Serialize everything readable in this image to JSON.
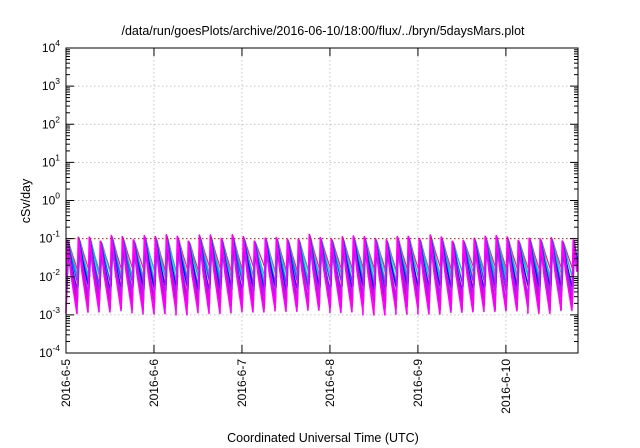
{
  "chart_data": {
    "type": "line",
    "title": "/data/run/goesPlots/archive/2016-06-10/18:00/flux/../bryn/5daysMars.plot",
    "xlabel": "Coordinated Universal Time (UTC)",
    "ylabel": "cSv/day",
    "yscale": "log",
    "ylim": [
      0.0001,
      10000
    ],
    "xlim": [
      "2016-06-05T00:00",
      "2016-06-10T19:40"
    ],
    "x_ticks": [
      {
        "label": "2016-6-5",
        "date": "2016-06-05"
      },
      {
        "label": "2016-6-6",
        "date": "2016-06-06"
      },
      {
        "label": "2016-6-7",
        "date": "2016-06-07"
      },
      {
        "label": "2016-6-8",
        "date": "2016-06-08"
      },
      {
        "label": "2016-6-9",
        "date": "2016-06-09"
      },
      {
        "label": "2016-6-10",
        "date": "2016-06-10"
      }
    ],
    "y_ticks": [
      {
        "base": "10",
        "exp": "-4",
        "value": 0.0001
      },
      {
        "base": "10",
        "exp": "-3",
        "value": 0.001
      },
      {
        "base": "10",
        "exp": "-2",
        "value": 0.01
      },
      {
        "base": "10",
        "exp": "-1",
        "value": 0.1
      },
      {
        "base": "10",
        "exp": "0",
        "value": 1
      },
      {
        "base": "10",
        "exp": "1",
        "value": 10
      },
      {
        "base": "10",
        "exp": "2",
        "value": 100
      },
      {
        "base": "10",
        "exp": "3",
        "value": 1000
      },
      {
        "base": "10",
        "exp": "4",
        "value": 10000
      }
    ],
    "grid": true,
    "reference_line": {
      "value": 0.1,
      "color": "#ff0000",
      "style": "dotted"
    },
    "pattern": {
      "cycles_per_day": 8,
      "peak_value_range": [
        0.06,
        0.13
      ],
      "trough_value_range": [
        0.001,
        0.015
      ]
    },
    "series_colors": [
      "#ff00ff",
      "#cc00cc",
      "#a020f0",
      "#8a2be2",
      "#0000ff",
      "#1e50ff",
      "#00bfbf",
      "#00ced1",
      "#ff1493"
    ]
  }
}
